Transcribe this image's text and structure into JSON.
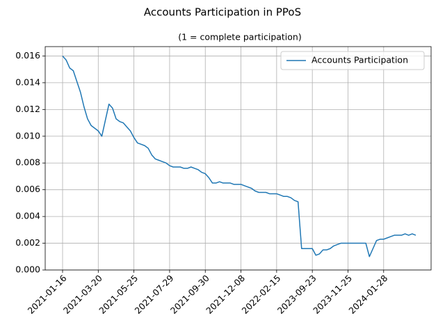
{
  "chart_data": {
    "type": "line",
    "title": "Accounts Participation in PPoS",
    "subtitle": "(1 = complete participation)",
    "categories": [
      "2021-01-16",
      null,
      null,
      null,
      null,
      null,
      null,
      null,
      null,
      null,
      "2021-03-20",
      null,
      null,
      null,
      null,
      null,
      null,
      null,
      null,
      null,
      "2021-05-25",
      null,
      null,
      null,
      null,
      null,
      null,
      null,
      null,
      null,
      "2021-07-29",
      null,
      null,
      null,
      null,
      null,
      null,
      null,
      null,
      null,
      "2021-09-30",
      null,
      null,
      null,
      null,
      null,
      null,
      null,
      null,
      null,
      "2021-12-08",
      null,
      null,
      null,
      null,
      null,
      null,
      null,
      null,
      null,
      "2022-02-15",
      null,
      null,
      null,
      null,
      null,
      null,
      null,
      null,
      null,
      "2023-09-23",
      null,
      null,
      null,
      null,
      null,
      null,
      null,
      null,
      null,
      "2023-11-25",
      null,
      null,
      null,
      null,
      null,
      null,
      null,
      null,
      null,
      "2024-01-28",
      null,
      null,
      null,
      null,
      null,
      null,
      null,
      null,
      null
    ],
    "series": [
      {
        "name": "Accounts Participation",
        "color": "#1f77b4",
        "values": [
          0.016,
          0.0157,
          0.0151,
          0.0149,
          0.0141,
          0.0133,
          0.0122,
          0.0113,
          0.0108,
          0.0106,
          0.0104,
          0.01,
          0.0112,
          0.0124,
          0.0121,
          0.0113,
          0.0111,
          0.011,
          0.0107,
          0.0104,
          0.0099,
          0.0095,
          0.0094,
          0.0093,
          0.0091,
          0.0086,
          0.0083,
          0.0082,
          0.0081,
          0.008,
          0.0078,
          0.0077,
          0.0077,
          0.0077,
          0.0076,
          0.0076,
          0.0077,
          0.0076,
          0.0075,
          0.0073,
          0.0072,
          0.0069,
          0.0065,
          0.0065,
          0.0066,
          0.0065,
          0.0065,
          0.0065,
          0.0064,
          0.0064,
          0.0064,
          0.0063,
          0.0062,
          0.0061,
          0.0059,
          0.0058,
          0.0058,
          0.0058,
          0.0057,
          0.0057,
          0.0057,
          0.0056,
          0.0055,
          0.0055,
          0.0054,
          0.0052,
          0.0051,
          0.0016,
          0.0016,
          0.0016,
          0.0016,
          0.0011,
          0.0012,
          0.0015,
          0.0015,
          0.0016,
          0.0018,
          0.0019,
          0.002,
          0.002,
          0.002,
          0.002,
          0.002,
          0.002,
          0.002,
          0.002,
          0.001,
          0.0016,
          0.0022,
          0.0023,
          0.0023,
          0.0024,
          0.0025,
          0.0026,
          0.0026,
          0.0026,
          0.0027,
          0.0026,
          0.0027,
          0.0026
        ]
      }
    ],
    "ylim": [
      0,
      0.0167
    ],
    "yticks": [
      {
        "value": 0,
        "label": "0.000"
      },
      {
        "value": 0.002,
        "label": "0.002"
      },
      {
        "value": 0.004,
        "label": "0.004"
      },
      {
        "value": 0.006,
        "label": "0.006"
      },
      {
        "value": 0.008,
        "label": "0.008"
      },
      {
        "value": 0.01,
        "label": "0.010"
      },
      {
        "value": 0.012,
        "label": "0.012"
      },
      {
        "value": 0.014,
        "label": "0.014"
      },
      {
        "value": 0.016,
        "label": "0.016"
      }
    ],
    "grid": true,
    "legend": "upper right"
  }
}
